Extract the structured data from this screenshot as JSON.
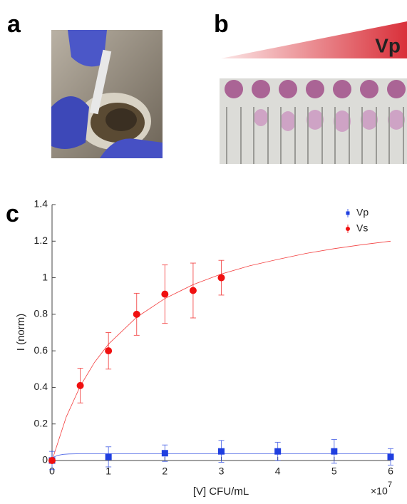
{
  "panels": [
    "a",
    "b",
    "c"
  ],
  "panel_b_label": "Vp",
  "chart_data": {
    "type": "scatter",
    "y_label": "I (norm)",
    "x_label": "[V] CFU/mL",
    "x_multiplier": "×10",
    "x_exponent": "7",
    "xlim": [
      0,
      6
    ],
    "xticks": [
      0,
      1,
      2,
      3,
      4,
      5,
      6
    ],
    "ylim": [
      0,
      1.4
    ],
    "yticks": [
      0,
      0.2,
      0.4,
      0.6,
      0.8,
      1,
      1.2,
      1.4
    ],
    "legend": "upper right",
    "series": [
      {
        "name": "Vp",
        "color": "#1f3fe0",
        "marker": "square",
        "x": [
          0,
          1,
          2,
          3,
          4,
          5,
          6
        ],
        "values": [
          0,
          0.02,
          0.04,
          0.05,
          0.05,
          0.05,
          0.02
        ],
        "errors": [
          0.05,
          0.055,
          0.045,
          0.06,
          0.05,
          0.065,
          0.045
        ],
        "fit_x": [
          0,
          0.1,
          0.2,
          0.3,
          0.5,
          1,
          6
        ],
        "fit_values": [
          0.015,
          0.028,
          0.034,
          0.036,
          0.037,
          0.037,
          0.037
        ]
      },
      {
        "name": "Vs",
        "color": "#f01010",
        "marker": "circle",
        "x": [
          0,
          0.5,
          1,
          1.5,
          2,
          2.5,
          3
        ],
        "values": [
          0,
          0.41,
          0.6,
          0.8,
          0.91,
          0.93,
          1.0
        ],
        "errors": [
          0,
          0.095,
          0.1,
          0.115,
          0.16,
          0.15,
          0.095
        ],
        "fit_x": [
          0,
          0.25,
          0.5,
          0.75,
          1,
          1.5,
          2,
          2.5,
          3,
          3.5,
          4,
          4.5,
          5,
          5.5,
          6
        ],
        "fit_values": [
          0,
          0.237,
          0.407,
          0.536,
          0.637,
          0.784,
          0.886,
          0.962,
          1.02,
          1.065,
          1.1,
          1.133,
          1.159,
          1.181,
          1.2
        ]
      }
    ]
  }
}
